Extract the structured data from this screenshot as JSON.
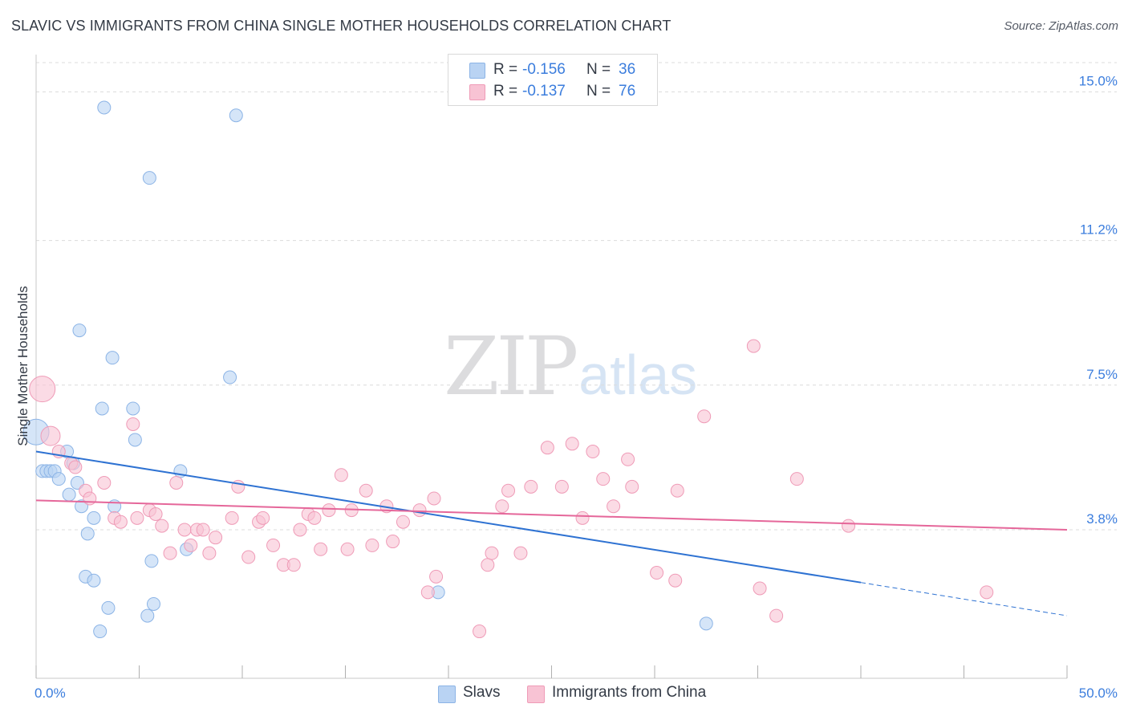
{
  "title": "SLAVIC VS IMMIGRANTS FROM CHINA SINGLE MOTHER HOUSEHOLDS CORRELATION CHART",
  "source": "Source: ZipAtlas.com",
  "watermark": {
    "zip": "ZIP",
    "atlas": "atlas"
  },
  "legend_top": {
    "r_label": "R =",
    "n_label": "N =",
    "series": [
      {
        "name": "Slavs",
        "r": "-0.156",
        "n": "36"
      },
      {
        "name": "Immigrants from China",
        "r": "-0.137",
        "n": "76"
      }
    ]
  },
  "legend_bottom": {
    "slavs": "Slavs",
    "china": "Immigrants from China"
  },
  "chart_data": {
    "type": "scatter",
    "title": "SLAVIC VS IMMIGRANTS FROM CHINA SINGLE MOTHER HOUSEHOLDS CORRELATION CHART",
    "xlabel": "",
    "ylabel": "Single Mother Households",
    "xlim": [
      0,
      50
    ],
    "ylim": [
      0,
      15.75
    ],
    "x_tick_labels": [
      "0.0%",
      "50.0%"
    ],
    "y_ticks": [
      3.8,
      7.5,
      11.2,
      15.0
    ],
    "y_tick_labels": [
      "3.8%",
      "7.5%",
      "11.2%",
      "15.0%"
    ],
    "grid": true,
    "colors": {
      "slavs_fill": "#b9d3f3",
      "slavs_stroke": "#8cb4e6",
      "slavs_line": "#2e72d2",
      "china_fill": "#f8c3d4",
      "china_stroke": "#ef9bb7",
      "china_line": "#e5679a",
      "tick_label": "#3b7ddd"
    },
    "series": [
      {
        "name": "Slavs",
        "points": [
          [
            3.3,
            14.6
          ],
          [
            9.7,
            14.4
          ],
          [
            5.5,
            12.8
          ],
          [
            2.1,
            8.9
          ],
          [
            3.7,
            8.2
          ],
          [
            9.4,
            7.7
          ],
          [
            3.2,
            6.9
          ],
          [
            4.7,
            6.9
          ],
          [
            0.0,
            6.3
          ],
          [
            4.8,
            6.1
          ],
          [
            1.5,
            5.8
          ],
          [
            0.3,
            5.3
          ],
          [
            0.5,
            5.3
          ],
          [
            0.7,
            5.3
          ],
          [
            0.9,
            5.3
          ],
          [
            1.8,
            5.5
          ],
          [
            1.1,
            5.1
          ],
          [
            7.0,
            5.3
          ],
          [
            2.0,
            5.0
          ],
          [
            1.6,
            4.7
          ],
          [
            2.2,
            4.4
          ],
          [
            3.8,
            4.4
          ],
          [
            2.8,
            4.1
          ],
          [
            2.5,
            3.7
          ],
          [
            7.3,
            3.3
          ],
          [
            5.6,
            3.0
          ],
          [
            2.4,
            2.6
          ],
          [
            2.8,
            2.5
          ],
          [
            5.7,
            1.9
          ],
          [
            3.5,
            1.8
          ],
          [
            5.4,
            1.6
          ],
          [
            3.1,
            1.2
          ],
          [
            19.5,
            2.2
          ],
          [
            32.5,
            1.4
          ]
        ],
        "sizes": {
          "[0.0,6.3]": "large"
        },
        "trend": {
          "x0": 0,
          "y0": 5.8,
          "x1": 40,
          "y1": 2.45,
          "dashed_to_x": 50,
          "dashed_to_y": 1.6
        }
      },
      {
        "name": "Immigrants from China",
        "points": [
          [
            0.3,
            7.4
          ],
          [
            0.7,
            6.2
          ],
          [
            1.1,
            5.8
          ],
          [
            2.4,
            4.8
          ],
          [
            1.7,
            5.5
          ],
          [
            1.9,
            5.4
          ],
          [
            2.6,
            4.6
          ],
          [
            3.3,
            5.0
          ],
          [
            4.7,
            6.5
          ],
          [
            3.8,
            4.1
          ],
          [
            4.9,
            4.1
          ],
          [
            5.5,
            4.3
          ],
          [
            4.1,
            4.0
          ],
          [
            5.8,
            4.2
          ],
          [
            6.1,
            3.9
          ],
          [
            6.5,
            3.2
          ],
          [
            6.8,
            5.0
          ],
          [
            7.2,
            3.8
          ],
          [
            7.5,
            3.4
          ],
          [
            7.8,
            3.8
          ],
          [
            8.1,
            3.8
          ],
          [
            8.7,
            3.6
          ],
          [
            8.4,
            3.2
          ],
          [
            9.5,
            4.1
          ],
          [
            9.8,
            4.9
          ],
          [
            10.3,
            3.1
          ],
          [
            10.8,
            4.0
          ],
          [
            11.0,
            4.1
          ],
          [
            11.5,
            3.4
          ],
          [
            12.0,
            2.9
          ],
          [
            12.5,
            2.9
          ],
          [
            12.8,
            3.8
          ],
          [
            13.2,
            4.2
          ],
          [
            13.5,
            4.1
          ],
          [
            13.8,
            3.3
          ],
          [
            14.2,
            4.3
          ],
          [
            14.8,
            5.2
          ],
          [
            15.1,
            3.3
          ],
          [
            15.3,
            4.3
          ],
          [
            16.0,
            4.8
          ],
          [
            16.3,
            3.4
          ],
          [
            17.0,
            4.4
          ],
          [
            17.3,
            3.5
          ],
          [
            17.8,
            4.0
          ],
          [
            18.6,
            4.3
          ],
          [
            19.0,
            2.2
          ],
          [
            19.4,
            2.6
          ],
          [
            19.3,
            4.6
          ],
          [
            21.5,
            1.2
          ],
          [
            21.9,
            2.9
          ],
          [
            22.1,
            3.2
          ],
          [
            22.6,
            4.4
          ],
          [
            22.9,
            4.8
          ],
          [
            23.5,
            3.2
          ],
          [
            24.0,
            4.9
          ],
          [
            24.8,
            5.9
          ],
          [
            25.5,
            4.9
          ],
          [
            26.0,
            6.0
          ],
          [
            26.5,
            4.1
          ],
          [
            27.0,
            5.8
          ],
          [
            27.5,
            5.1
          ],
          [
            28.0,
            4.4
          ],
          [
            28.7,
            5.6
          ],
          [
            28.9,
            4.9
          ],
          [
            30.1,
            2.7
          ],
          [
            31.0,
            2.5
          ],
          [
            31.1,
            4.8
          ],
          [
            32.4,
            6.7
          ],
          [
            34.8,
            8.5
          ],
          [
            35.1,
            2.3
          ],
          [
            35.9,
            1.6
          ],
          [
            36.9,
            5.1
          ],
          [
            39.4,
            3.9
          ],
          [
            46.1,
            2.2
          ]
        ],
        "sizes": {
          "[0.3,7.4]": "large",
          "[0.7,6.2]": "medium"
        },
        "trend": {
          "x0": 0,
          "y0": 4.55,
          "x1": 50,
          "y1": 3.8
        }
      }
    ]
  }
}
